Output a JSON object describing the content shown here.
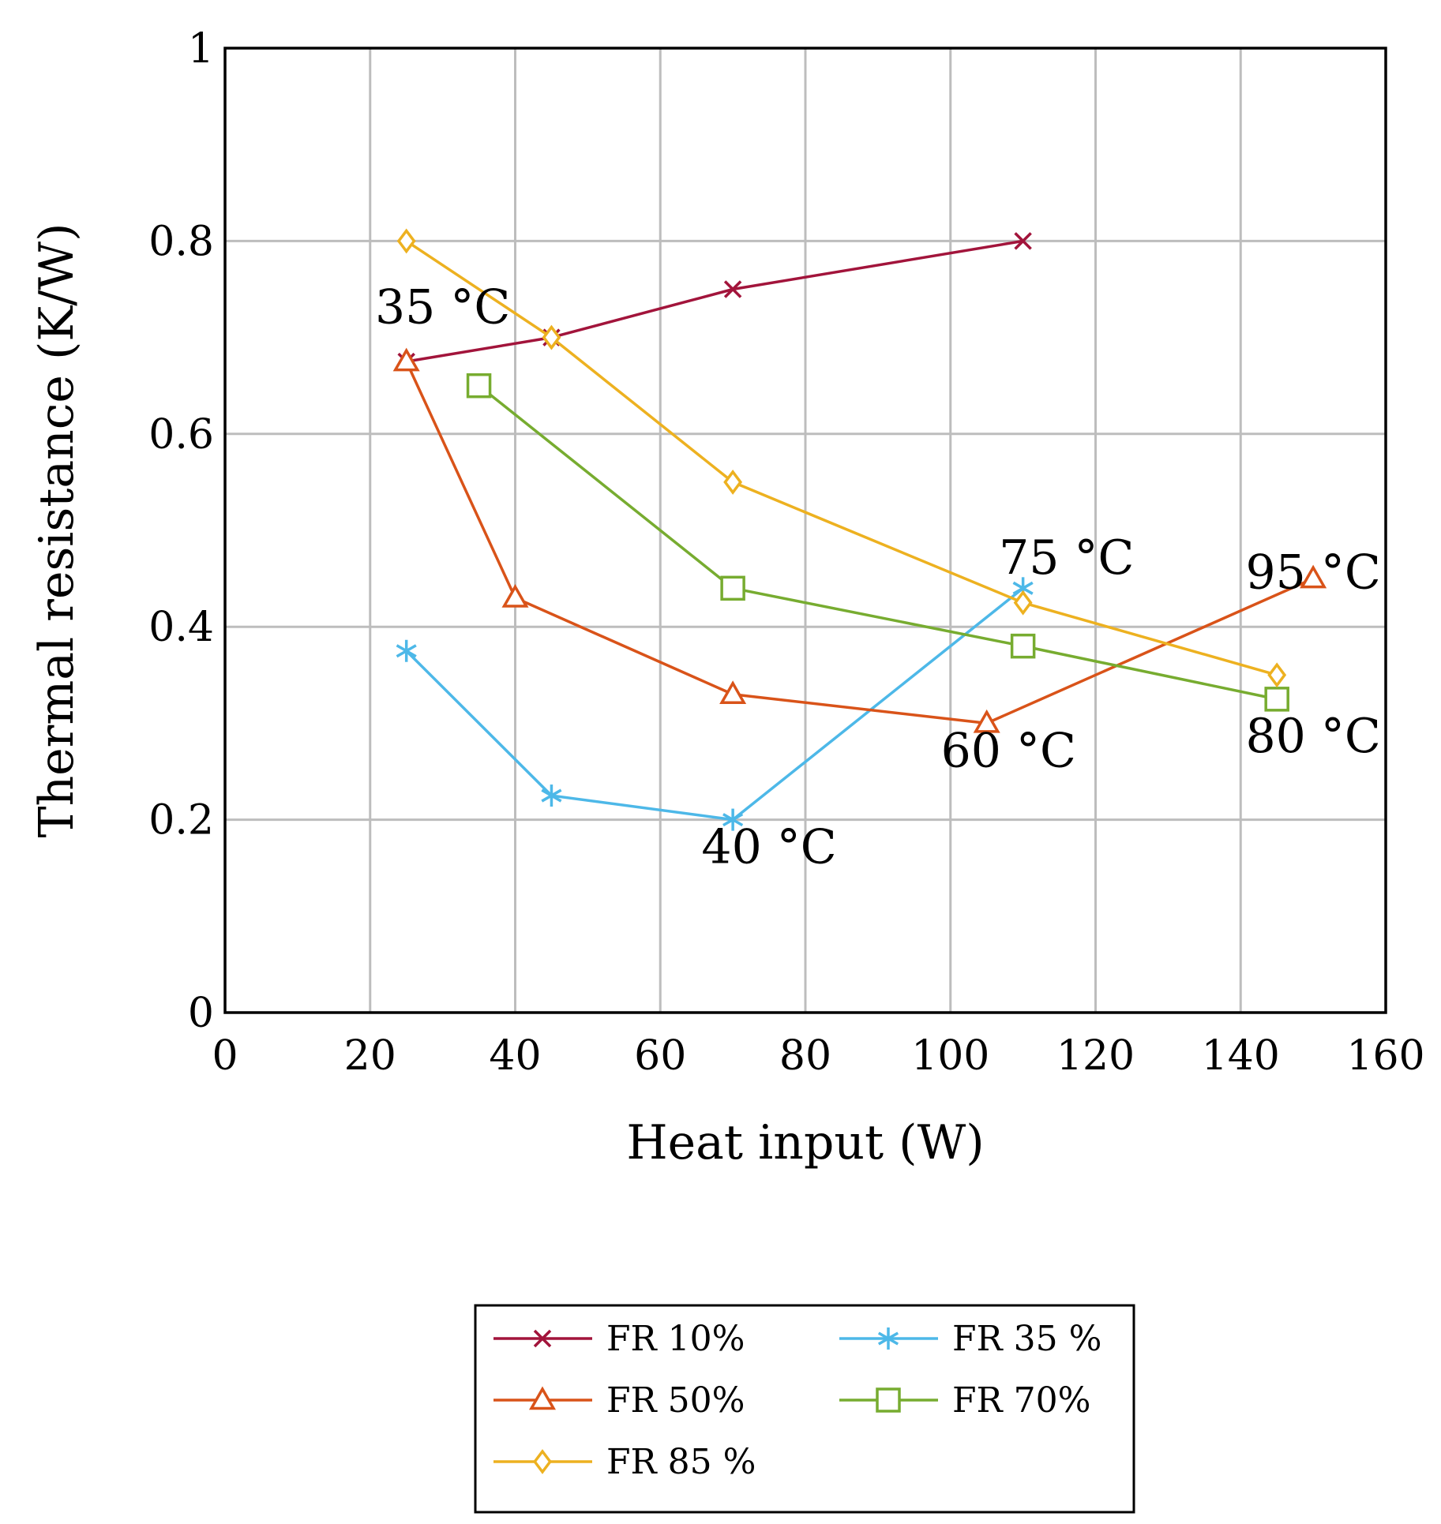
{
  "chart_data": {
    "type": "line",
    "xlabel": "Heat input (W)",
    "ylabel": "Thermal resistance (K/W)",
    "xlim": [
      0,
      160
    ],
    "ylim": [
      0,
      1
    ],
    "xticks": [
      0,
      20,
      40,
      60,
      80,
      100,
      120,
      140,
      160
    ],
    "yticks": [
      0,
      0.2,
      0.4,
      0.6,
      0.8,
      1
    ],
    "xtick_labels": [
      "0",
      "20",
      "40",
      "60",
      "80",
      "100",
      "120",
      "140",
      "160"
    ],
    "ytick_labels": [
      "0",
      "0.2",
      "0.4",
      "0.6",
      "0.8",
      "1"
    ],
    "grid": true,
    "legend_position": "bottom-outside",
    "series": [
      {
        "name": "FR 10%",
        "color": "#a2143b",
        "marker": "x",
        "x": [
          25,
          45,
          70,
          110
        ],
        "y": [
          0.675,
          0.7,
          0.75,
          0.8
        ]
      },
      {
        "name": "FR 35 %",
        "color": "#4db8e8",
        "marker": "star",
        "x": [
          25,
          45,
          70,
          110
        ],
        "y": [
          0.375,
          0.225,
          0.2,
          0.44
        ]
      },
      {
        "name": "FR 50%",
        "color": "#d95319",
        "marker": "triangle",
        "x": [
          25,
          40,
          70,
          105,
          150
        ],
        "y": [
          0.675,
          0.43,
          0.33,
          0.3,
          0.45
        ]
      },
      {
        "name": "FR 70%",
        "color": "#77ac30",
        "marker": "square",
        "x": [
          35,
          70,
          110,
          145
        ],
        "y": [
          0.65,
          0.44,
          0.38,
          0.325
        ]
      },
      {
        "name": "FR 85 %",
        "color": "#edb120",
        "marker": "diamond",
        "x": [
          25,
          45,
          70,
          110,
          145
        ],
        "y": [
          0.8,
          0.7,
          0.55,
          0.425,
          0.35
        ]
      }
    ],
    "annotations": [
      {
        "text": "35 °C",
        "x": 30,
        "y": 0.715
      },
      {
        "text": "40 °C",
        "x": 75,
        "y": 0.155
      },
      {
        "text": "60 °C",
        "x": 108,
        "y": 0.255
      },
      {
        "text": "75 °C",
        "x": 116,
        "y": 0.455
      },
      {
        "text": "95 °C",
        "x": 150,
        "y": 0.44
      },
      {
        "text": "80 °C",
        "x": 150,
        "y": 0.27
      }
    ]
  }
}
